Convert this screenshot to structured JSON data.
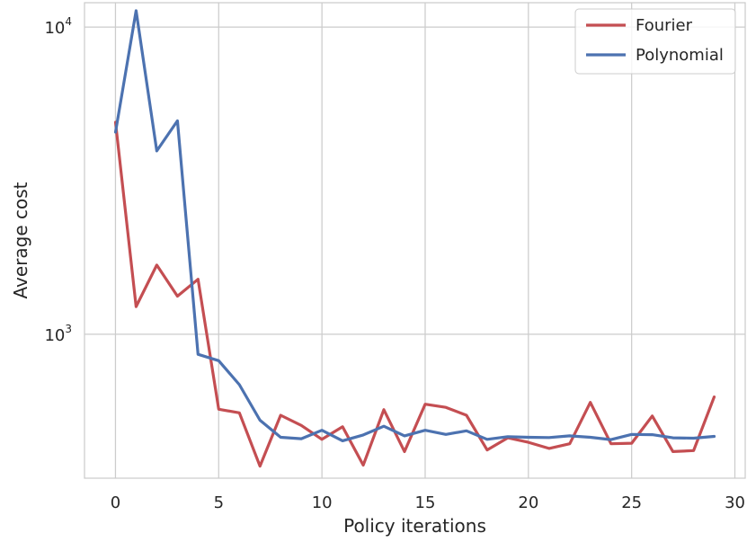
{
  "chart_data": {
    "type": "line",
    "title": "",
    "xlabel": "Policy iterations",
    "ylabel": "Average cost",
    "xlim": [
      -1.5,
      30.5
    ],
    "ylim": [
      340,
      12000
    ],
    "yscale": "log",
    "grid": true,
    "legend_position": "top-right",
    "x_ticks": [
      {
        "value": 0,
        "label": "0"
      },
      {
        "value": 5,
        "label": "5"
      },
      {
        "value": 10,
        "label": "10"
      },
      {
        "value": 15,
        "label": "15"
      },
      {
        "value": 20,
        "label": "20"
      },
      {
        "value": 25,
        "label": "25"
      },
      {
        "value": 30,
        "label": "30"
      }
    ],
    "y_ticks": [
      {
        "value": 1000,
        "base": "10",
        "exp": "3"
      },
      {
        "value": 10000,
        "base": "10",
        "exp": "4"
      }
    ],
    "x": [
      0,
      1,
      2,
      3,
      4,
      5,
      6,
      7,
      8,
      9,
      10,
      11,
      12,
      13,
      14,
      15,
      16,
      17,
      18,
      19,
      20,
      21,
      22,
      23,
      24,
      25,
      26,
      27,
      28,
      29
    ],
    "series": [
      {
        "name": "Fourier",
        "color": "#c44e52",
        "values": [
          4900,
          1230,
          1680,
          1330,
          1510,
          570,
          555,
          372,
          545,
          505,
          455,
          500,
          375,
          568,
          415,
          592,
          578,
          545,
          420,
          460,
          445,
          425,
          440,
          600,
          440,
          442,
          542,
          415,
          418,
          625
        ]
      },
      {
        "name": "Polynomial",
        "color": "#4c72b0",
        "values": [
          4550,
          11300,
          3950,
          4950,
          860,
          820,
          685,
          525,
          462,
          457,
          487,
          450,
          470,
          502,
          467,
          487,
          472,
          485,
          455,
          464,
          462,
          461,
          467,
          462,
          454,
          472,
          471,
          460,
          459,
          465
        ]
      }
    ]
  }
}
